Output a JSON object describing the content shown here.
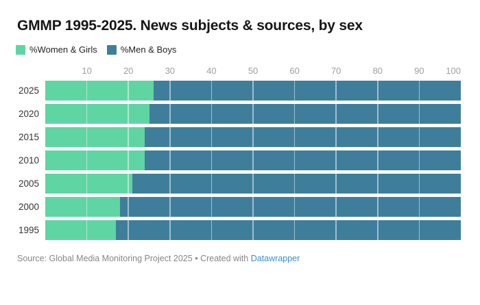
{
  "header": {
    "title": "GMMP 1995-2025. News subjects & sources, by sex"
  },
  "legend": {
    "items": [
      {
        "label": "%Women & Girls",
        "color": "#5fd5a3"
      },
      {
        "label": "%Men & Boys",
        "color": "#3f7e9b"
      }
    ]
  },
  "footer": {
    "source": "Source: Global Media Monitoring Project 2025",
    "separator": "•",
    "created": "Created with",
    "link": "Datawrapper",
    "link_color": "#3c8dd3"
  },
  "chart_data": {
    "type": "bar",
    "stacked": true,
    "orientation": "horizontal",
    "title": "GMMP 1995-2025. News subjects & sources, by sex",
    "categories": [
      "2025",
      "2020",
      "2015",
      "2010",
      "2005",
      "2000",
      "1995"
    ],
    "series": [
      {
        "name": "%Women & Girls",
        "color": "#5fd5a3",
        "values": [
          26,
          25,
          24,
          24,
          21,
          18,
          17
        ]
      },
      {
        "name": "%Men & Boys",
        "color": "#3f7e9b",
        "values": [
          74,
          75,
          76,
          76,
          79,
          82,
          83
        ]
      }
    ],
    "x_axis": {
      "min": 0,
      "max": 100,
      "ticks": [
        10,
        20,
        30,
        40,
        50,
        60,
        70,
        80,
        90,
        100
      ],
      "position": "top"
    },
    "grid": true,
    "gridline_color": "rgba(255,255,255,0.5)",
    "legend_position": "top-left"
  }
}
